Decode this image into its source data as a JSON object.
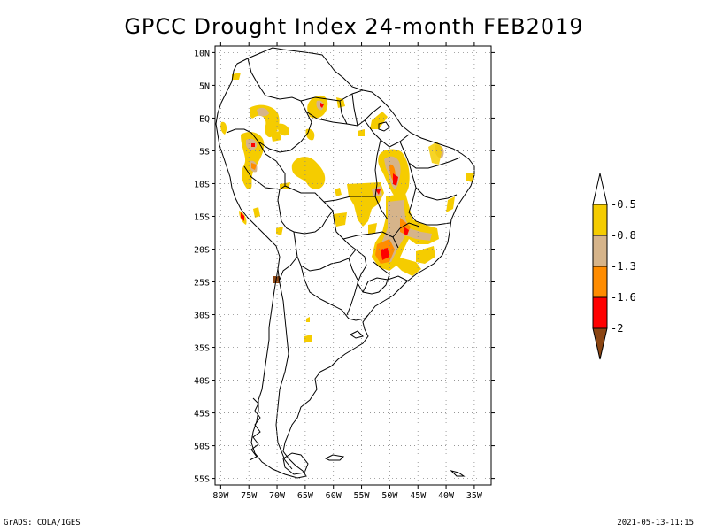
{
  "title": "GPCC Drought Index 24-month FEB2019",
  "footer": {
    "left": "GrADS: COLA/IGES",
    "right": "2021-05-13-11:15"
  },
  "axes": {
    "lat_labels": [
      "10N",
      "5N",
      "EQ",
      "5S",
      "10S",
      "15S",
      "20S",
      "25S",
      "30S",
      "35S",
      "40S",
      "45S",
      "50S",
      "55S"
    ],
    "lon_labels": [
      "80W",
      "75W",
      "70W",
      "65W",
      "60W",
      "55W",
      "50W",
      "45W",
      "40W",
      "35W"
    ]
  },
  "colorbar": {
    "labels": [
      "-0.5",
      "-0.8",
      "-1.3",
      "-1.6",
      "-2"
    ],
    "colors": [
      "#ffffff",
      "#f5cc00",
      "#d6b48a",
      "#ff8c00",
      "#ff0000",
      "#8b4513"
    ]
  },
  "colors": {
    "yellow": "#f5cc00",
    "tan": "#d6b48a",
    "orange": "#ff8c00",
    "red": "#ff0000",
    "brown": "#8b4513"
  },
  "map_view": {
    "lon_range": [
      -81,
      -32
    ],
    "lat_range": [
      -56,
      11
    ],
    "gridlines": "dotted"
  },
  "chart_data": {
    "type": "heatmap",
    "title": "GPCC Drought Index 24-month FEB2019",
    "xlabel": "",
    "ylabel": "",
    "xlim": [
      -81,
      -32
    ],
    "ylim": [
      -56,
      11
    ],
    "legend_placement": "right",
    "levels": [
      -2,
      -1.6,
      -1.3,
      -0.8,
      -0.5
    ]
  }
}
